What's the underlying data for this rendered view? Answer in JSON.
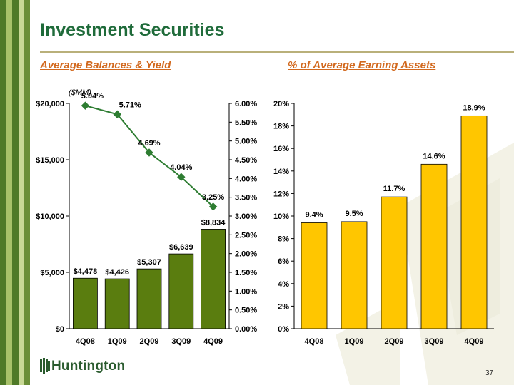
{
  "title": "Investment Securities",
  "subtitles": {
    "left": "Average Balances & Yield",
    "right": "% of Average Earning Assets"
  },
  "unit_label": "($MM)",
  "logo_text": "Huntington",
  "page_number": "37",
  "colors": {
    "title": "#1f6b3a",
    "subtitle": "#d2691e",
    "bar_left": "#5a7d0f",
    "bar_right": "#ffc600",
    "line": "#2e7d32",
    "stripe_dark": "#4f7a28",
    "stripe_light": "#a8c26a"
  },
  "chart_data": [
    {
      "type": "bar",
      "categories": [
        "4Q08",
        "1Q09",
        "2Q09",
        "3Q09",
        "4Q09"
      ],
      "values": [
        4478,
        4426,
        5307,
        6639,
        8834
      ],
      "value_labels": [
        "$4,478",
        "$4,426",
        "$5,307",
        "$6,639",
        "$8,834"
      ],
      "ylim": [
        0,
        20000
      ],
      "y_ticks": [
        0,
        5000,
        10000,
        15000,
        20000
      ],
      "y_tick_labels": [
        "$0",
        "$5,000",
        "$10,000",
        "$15,000",
        "$20,000"
      ],
      "secondary": {
        "type": "line",
        "values": [
          5.94,
          5.71,
          4.69,
          4.04,
          3.25
        ],
        "value_labels": [
          "5.94%",
          "5.71%",
          "4.69%",
          "4.04%",
          "3.25%"
        ],
        "ylim": [
          0,
          6
        ],
        "y_ticks": [
          0,
          0.5,
          1,
          1.5,
          2,
          2.5,
          3,
          3.5,
          4,
          4.5,
          5,
          5.5,
          6
        ],
        "y_tick_labels": [
          "0.00%",
          "0.50%",
          "1.00%",
          "1.50%",
          "2.00%",
          "2.50%",
          "3.00%",
          "3.50%",
          "4.00%",
          "4.50%",
          "5.00%",
          "5.50%",
          "6.00%"
        ]
      },
      "grid": false,
      "legend": "none"
    },
    {
      "type": "bar",
      "categories": [
        "4Q08",
        "1Q09",
        "2Q09",
        "3Q09",
        "4Q09"
      ],
      "values": [
        9.4,
        9.5,
        11.7,
        14.6,
        18.9
      ],
      "value_labels": [
        "9.4%",
        "9.5%",
        "11.7%",
        "14.6%",
        "18.9%"
      ],
      "ylim": [
        0,
        20
      ],
      "y_ticks": [
        0,
        2,
        4,
        6,
        8,
        10,
        12,
        14,
        16,
        18,
        20
      ],
      "y_tick_labels": [
        "0%",
        "2%",
        "4%",
        "6%",
        "8%",
        "10%",
        "12%",
        "14%",
        "16%",
        "18%",
        "20%"
      ],
      "grid": false,
      "legend": "none"
    }
  ]
}
